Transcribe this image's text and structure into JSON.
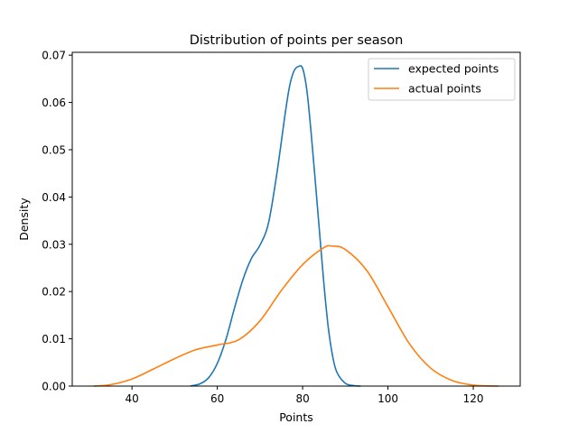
{
  "chart_data": {
    "type": "line",
    "title": "Distribution of points per season",
    "xlabel": "Points",
    "ylabel": "Density",
    "xlim": [
      26,
      131
    ],
    "ylim": [
      0,
      0.0706
    ],
    "xticks": [
      40,
      60,
      80,
      100,
      120
    ],
    "yticks": [
      0.0,
      0.01,
      0.02,
      0.03,
      0.04,
      0.05,
      0.06,
      0.07
    ],
    "ytick_labels": [
      "0.00",
      "0.01",
      "0.02",
      "0.03",
      "0.04",
      "0.05",
      "0.06",
      "0.07"
    ],
    "grid": false,
    "legend_position": "top-right",
    "series": [
      {
        "name": "expected points",
        "color": "#1f77b4",
        "x": [
          53.7,
          56,
          58,
          60,
          62,
          64,
          66,
          68,
          70,
          72,
          74,
          76,
          77,
          78,
          79,
          80,
          81,
          82,
          83,
          84,
          85,
          86,
          87,
          88,
          90,
          92,
          93.6
        ],
        "y": [
          0.0,
          0.0005,
          0.0018,
          0.0048,
          0.0098,
          0.0164,
          0.0225,
          0.027,
          0.0298,
          0.0345,
          0.0452,
          0.0582,
          0.0637,
          0.0667,
          0.0676,
          0.0672,
          0.0625,
          0.0535,
          0.043,
          0.0322,
          0.0215,
          0.0125,
          0.0065,
          0.003,
          0.0006,
          0.0001,
          0.0
        ]
      },
      {
        "name": "actual points",
        "color": "#ff7f0e",
        "x": [
          31,
          35,
          40,
          45,
          50,
          55,
          60,
          65,
          70,
          75,
          80,
          85,
          87,
          90,
          95,
          100,
          105,
          110,
          115,
          120,
          126
        ],
        "y": [
          0.0,
          0.0003,
          0.0015,
          0.0036,
          0.0058,
          0.0077,
          0.0087,
          0.0098,
          0.0138,
          0.0202,
          0.0257,
          0.0293,
          0.0296,
          0.0289,
          0.0245,
          0.0168,
          0.009,
          0.0038,
          0.0012,
          0.0002,
          0.0
        ]
      }
    ]
  }
}
